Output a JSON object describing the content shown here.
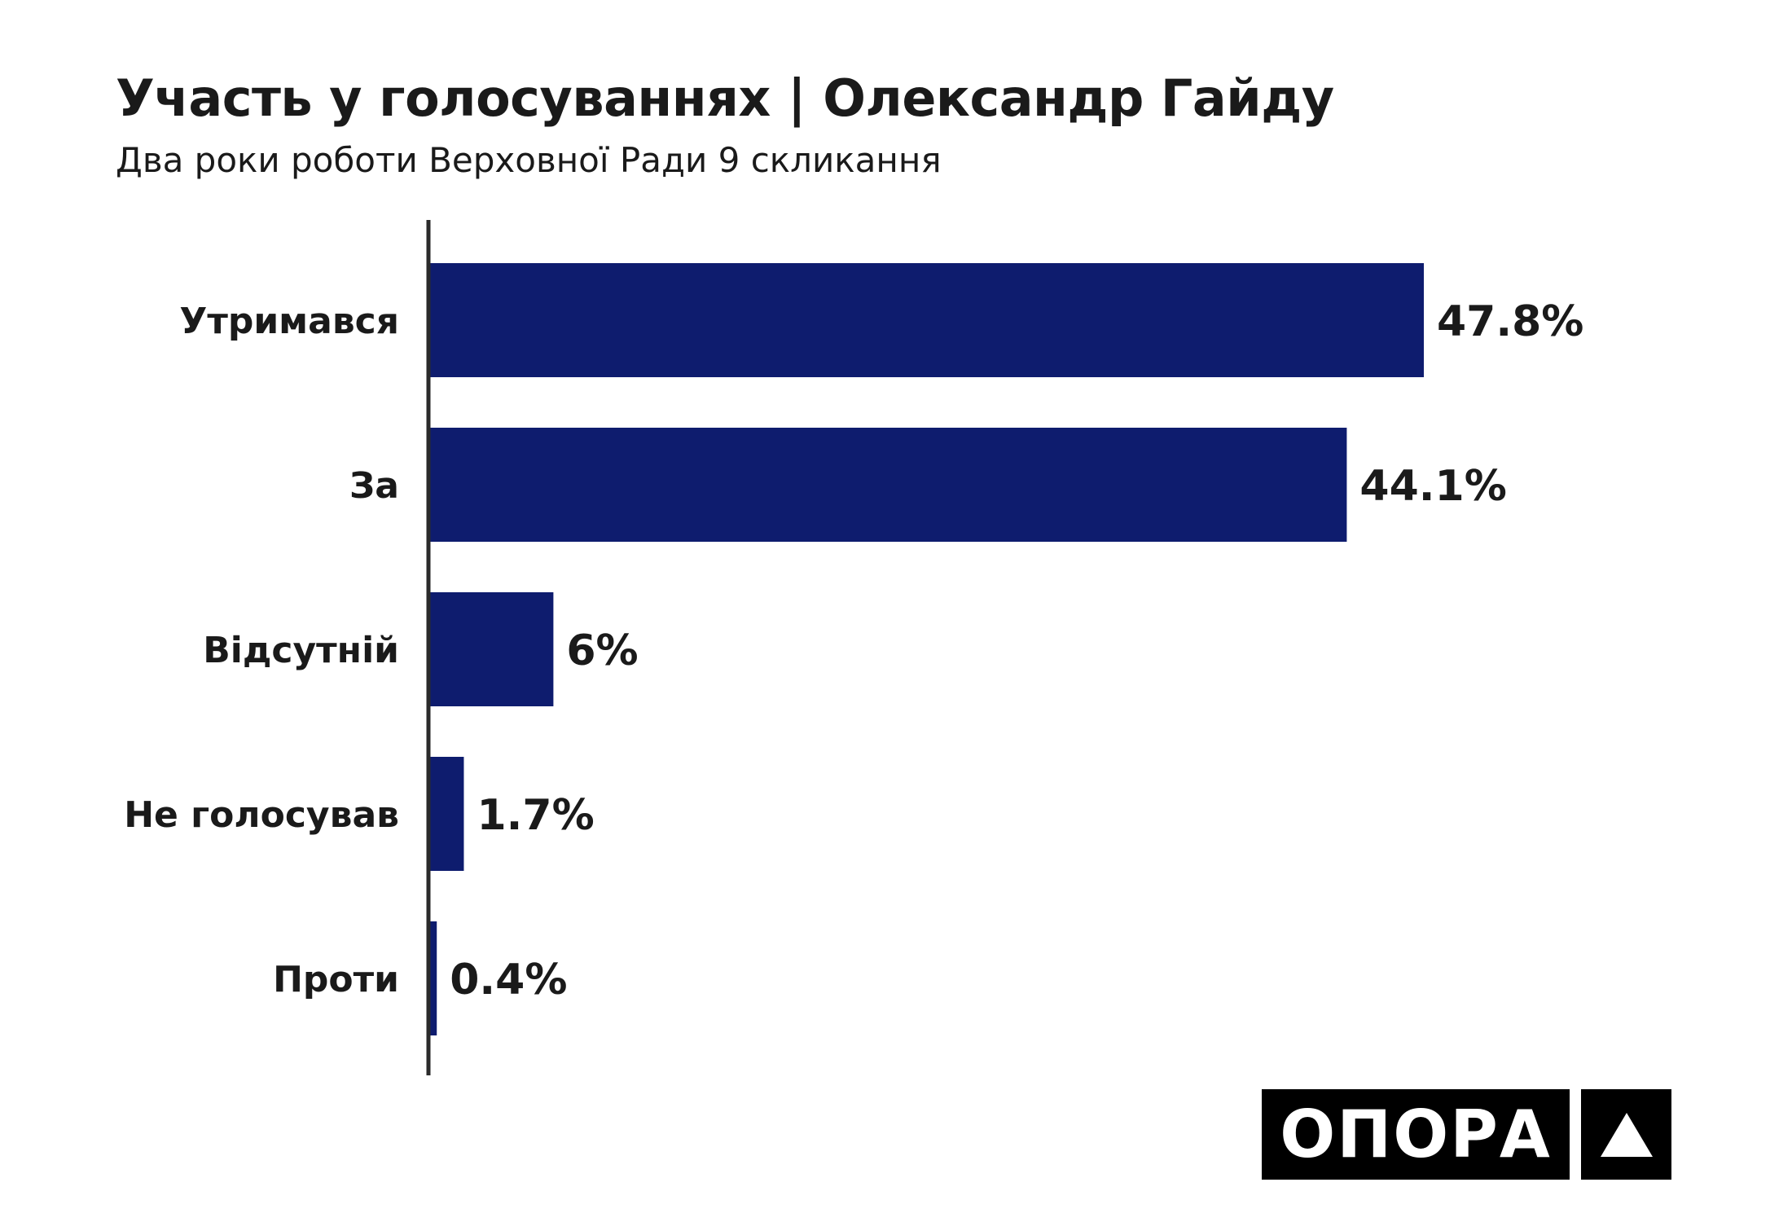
{
  "header": {
    "title": "Участь у голосуваннях | Олександр Гайду",
    "subtitle": "Два роки роботи Верховної Ради 9 скликання"
  },
  "chart_data": {
    "type": "bar",
    "orientation": "horizontal",
    "categories": [
      "Утримався",
      "За",
      "Відсутній",
      "Не голосував",
      "Проти"
    ],
    "values": [
      47.8,
      44.1,
      6,
      1.7,
      0.4
    ],
    "value_labels": [
      "47.8%",
      "44.1%",
      "6%",
      "1.7%",
      "0.4%"
    ],
    "xlim": [
      0,
      60
    ],
    "grid": false,
    "legend": "none",
    "bar_color": "#0e1c6e",
    "axis_color": "#2b2b2b"
  },
  "logo": {
    "text": "ОПОРА",
    "mark_icon": "triangle-icon"
  }
}
